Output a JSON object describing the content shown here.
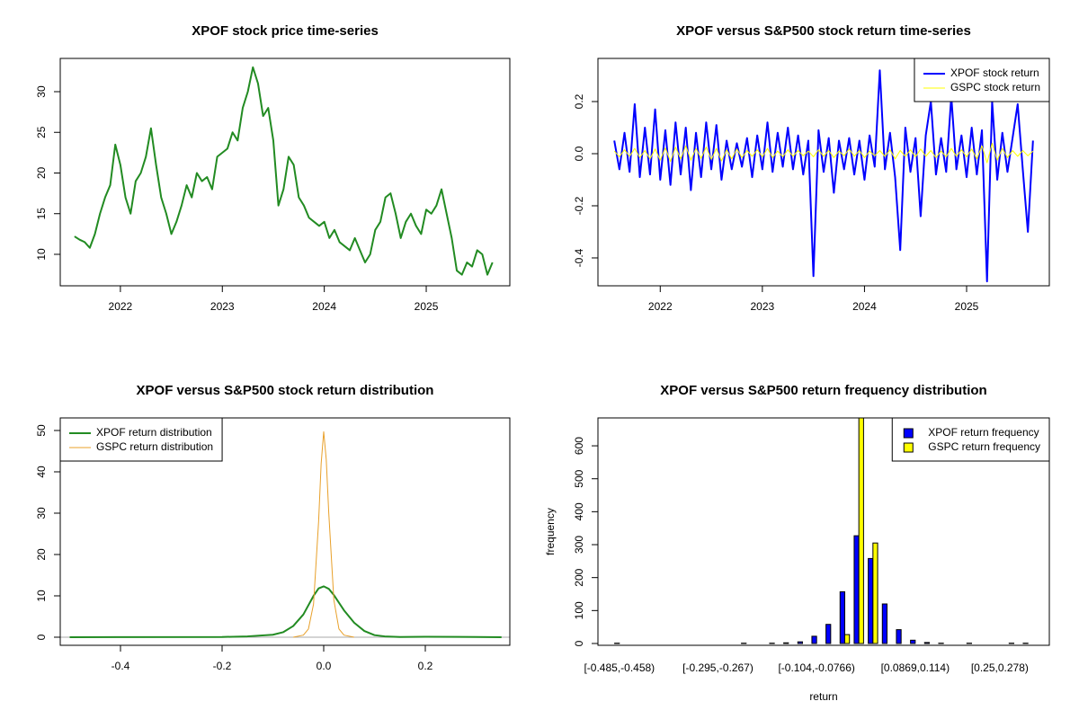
{
  "chart_data": [
    {
      "type": "line",
      "title": "XPOF stock price time-series",
      "x": [
        2021.55,
        2021.6,
        2021.65,
        2021.7,
        2021.75,
        2021.8,
        2021.85,
        2021.9,
        2021.95,
        2022,
        2022.05,
        2022.1,
        2022.15,
        2022.2,
        2022.25,
        2022.3,
        2022.35,
        2022.4,
        2022.45,
        2022.5,
        2022.55,
        2022.6,
        2022.65,
        2022.7,
        2022.75,
        2022.8,
        2022.85,
        2022.9,
        2022.95,
        2023,
        2023.05,
        2023.1,
        2023.15,
        2023.2,
        2023.25,
        2023.3,
        2023.35,
        2023.4,
        2023.45,
        2023.5,
        2023.55,
        2023.6,
        2023.65,
        2023.7,
        2023.75,
        2023.8,
        2023.85,
        2023.9,
        2023.95,
        2024,
        2024.05,
        2024.1,
        2024.15,
        2024.2,
        2024.25,
        2024.3,
        2024.35,
        2024.4,
        2024.45,
        2024.5,
        2024.55,
        2024.6,
        2024.65,
        2024.7,
        2024.75,
        2024.8,
        2024.85,
        2024.9,
        2024.95,
        2025,
        2025.05,
        2025.1,
        2025.15,
        2025.2,
        2025.25,
        2025.3,
        2025.35,
        2025.4,
        2025.45,
        2025.5,
        2025.55,
        2025.6,
        2025.65
      ],
      "values": [
        12.2,
        11.8,
        11.5,
        10.8,
        12.5,
        15,
        17,
        18.5,
        23.5,
        21,
        17,
        15,
        19,
        20,
        22,
        25.5,
        21,
        17,
        15,
        12.5,
        14,
        16,
        18.5,
        17,
        20,
        19,
        19.5,
        18,
        22,
        22.5,
        23,
        25,
        24,
        28,
        30,
        33,
        31,
        27,
        28,
        24,
        16,
        18,
        22,
        21,
        17,
        16,
        14.5,
        14,
        13.5,
        14,
        12,
        13,
        11.5,
        11,
        10.5,
        12,
        10.5,
        9,
        10,
        13,
        14,
        17,
        17.5,
        15,
        12,
        14,
        15,
        13.5,
        12.5,
        15.5,
        15,
        16,
        18,
        15,
        12,
        8,
        7.5,
        9,
        8.5,
        10.5,
        10,
        7.5,
        9
      ],
      "color": "#228b22",
      "xlim": [
        2021.41,
        2025.82
      ],
      "xticks": [
        2022,
        2023,
        2024,
        2025
      ],
      "ylim": [
        6.13,
        34.09
      ],
      "yticks": [
        10,
        15,
        20,
        25,
        30
      ]
    },
    {
      "type": "line",
      "title": "XPOF versus S&P500 stock return time-series",
      "x": [
        2021.55,
        2021.6,
        2021.65,
        2021.7,
        2021.75,
        2021.8,
        2021.85,
        2021.9,
        2021.95,
        2022,
        2022.05,
        2022.1,
        2022.15,
        2022.2,
        2022.25,
        2022.3,
        2022.35,
        2022.4,
        2022.45,
        2022.5,
        2022.55,
        2022.6,
        2022.65,
        2022.7,
        2022.75,
        2022.8,
        2022.85,
        2022.9,
        2022.95,
        2023,
        2023.05,
        2023.1,
        2023.15,
        2023.2,
        2023.25,
        2023.3,
        2023.35,
        2023.4,
        2023.45,
        2023.5,
        2023.55,
        2023.6,
        2023.65,
        2023.7,
        2023.75,
        2023.8,
        2023.85,
        2023.9,
        2023.95,
        2024,
        2024.05,
        2024.1,
        2024.15,
        2024.2,
        2024.25,
        2024.3,
        2024.35,
        2024.4,
        2024.45,
        2024.5,
        2024.55,
        2024.6,
        2024.65,
        2024.7,
        2024.75,
        2024.8,
        2024.85,
        2024.9,
        2024.95,
        2025,
        2025.05,
        2025.1,
        2025.15,
        2025.2,
        2025.25,
        2025.3,
        2025.35,
        2025.4,
        2025.45,
        2025.5,
        2025.55,
        2025.6,
        2025.65
      ],
      "series": [
        {
          "name": "XPOF stock return",
          "color": "#0000ff",
          "values": [
            0.05,
            -0.06,
            0.08,
            -0.07,
            0.19,
            -0.09,
            0.1,
            -0.08,
            0.17,
            -0.1,
            0.09,
            -0.12,
            0.12,
            -0.08,
            0.1,
            -0.14,
            0.08,
            -0.09,
            0.12,
            -0.06,
            0.11,
            -0.1,
            0.05,
            -0.06,
            0.04,
            -0.05,
            0.06,
            -0.09,
            0.07,
            -0.06,
            0.12,
            -0.07,
            0.08,
            -0.05,
            0.1,
            -0.06,
            0.07,
            -0.08,
            0.05,
            -0.47,
            0.09,
            -0.07,
            0.06,
            -0.15,
            0.05,
            -0.06,
            0.06,
            -0.08,
            0.05,
            -0.1,
            0.07,
            -0.05,
            0.32,
            -0.06,
            0.08,
            -0.09,
            -0.37,
            0.1,
            -0.07,
            0.06,
            -0.24,
            0.07,
            0.2,
            -0.08,
            0.06,
            -0.07,
            0.22,
            -0.06,
            0.07,
            -0.09,
            0.1,
            -0.08,
            0.09,
            -0.49,
            0.2,
            -0.1,
            0.08,
            -0.07,
            0.06,
            0.19,
            -0.06,
            -0.3,
            0.05
          ]
        },
        {
          "name": "GSPC stock return",
          "color": "#ffff00",
          "values": [
            0.01,
            -0.012,
            0.015,
            -0.01,
            0.02,
            -0.015,
            0.012,
            -0.02,
            0.018,
            -0.025,
            0.022,
            -0.03,
            0.025,
            -0.02,
            0.03,
            -0.025,
            0.02,
            -0.018,
            0.025,
            -0.022,
            0.02,
            -0.028,
            0.015,
            -0.02,
            0.018,
            -0.015,
            0.012,
            -0.01,
            0.015,
            -0.012,
            0.02,
            -0.015,
            0.01,
            -0.012,
            0.015,
            -0.01,
            0.012,
            -0.008,
            0.01,
            -0.012,
            0.015,
            -0.01,
            0.012,
            -0.015,
            0.01,
            -0.008,
            0.018,
            -0.01,
            0.012,
            -0.015,
            0.01,
            -0.008,
            0.012,
            -0.01,
            0.015,
            -0.02,
            0.012,
            -0.01,
            0.015,
            -0.012,
            0.018,
            -0.01,
            0.012,
            -0.015,
            0.01,
            -0.012,
            0.02,
            -0.01,
            0.015,
            -0.012,
            0.018,
            -0.02,
            0.03,
            -0.035,
            0.04,
            -0.025,
            0.02,
            -0.015,
            0.012,
            -0.01,
            0.012,
            -0.008,
            0.01
          ]
        }
      ],
      "xlim": [
        2021.39,
        2025.81
      ],
      "xticks": [
        2022,
        2023,
        2024,
        2025
      ],
      "ylim": [
        -0.507,
        0.3655
      ],
      "yticks": [
        -0.4,
        -0.2,
        {
          "value": 0,
          "label": "0.0"
        },
        0.2
      ],
      "legend": "topright"
    },
    {
      "type": "line",
      "title": "XPOF versus S&P500 stock return distribution",
      "series": [
        {
          "name": "XPOF return distribution",
          "color": "#228b22",
          "x": [
            -0.5,
            -0.2,
            -0.15,
            -0.1,
            -0.08,
            -0.06,
            -0.04,
            -0.02,
            -0.01,
            0,
            0.01,
            0.02,
            0.04,
            0.06,
            0.08,
            0.1,
            0.12,
            0.15,
            0.2,
            0.3,
            0.35
          ],
          "values": [
            0,
            0.05,
            0.2,
            0.6,
            1.2,
            2.7,
            5.5,
            10,
            11.8,
            12.3,
            11.7,
            10.2,
            6.5,
            3.5,
            1.5,
            0.5,
            0.2,
            0.05,
            0.1,
            0.05,
            0
          ]
        },
        {
          "name": "GSPC return distribution",
          "color": "#e8a02a",
          "x": [
            -0.06,
            -0.04,
            -0.03,
            -0.02,
            -0.01,
            -0.005,
            0,
            0.005,
            0.01,
            0.02,
            0.03,
            0.04,
            0.06
          ],
          "values": [
            0,
            0.5,
            2,
            8,
            28,
            42,
            49.7,
            43,
            30,
            9,
            2,
            0.5,
            0
          ]
        }
      ],
      "xlim": [
        -0.5186,
        0.3664
      ],
      "xticks": [
        -0.4,
        -0.2,
        {
          "value": 0,
          "label": "0.0"
        },
        0.2
      ],
      "ylim": [
        -1.96,
        53.04
      ],
      "yticks": [
        0,
        10,
        20,
        30,
        40,
        50
      ],
      "zero_line": true,
      "legend": "topleft"
    },
    {
      "type": "bar",
      "title": "XPOF versus S&P500 return frequency distribution",
      "categories": [
        "[-0.485,-0.458)",
        null,
        null,
        null,
        null,
        null,
        null,
        "[-0.295,-0.267)",
        null,
        null,
        null,
        null,
        null,
        null,
        "[-0.104,-0.0766)",
        null,
        null,
        null,
        null,
        null,
        null,
        "[0.0869,0.114)",
        null,
        null,
        null,
        null,
        null,
        "[0.25,0.278)",
        null,
        null
      ],
      "series": [
        {
          "name": "XPOF return frequency",
          "color": "#0000ff",
          "values": [
            1,
            0,
            0,
            0,
            0,
            0,
            0,
            0,
            0,
            1,
            0,
            1,
            2,
            5,
            22,
            58,
            157,
            327,
            258,
            120,
            42,
            10,
            3,
            1,
            0,
            1,
            0,
            0,
            1,
            1
          ]
        },
        {
          "name": "GSPC return frequency",
          "color": "#ffff00",
          "values": [
            0,
            0,
            0,
            0,
            0,
            0,
            0,
            0,
            0,
            0,
            0,
            0,
            0,
            0,
            0,
            0,
            27,
            700,
            305,
            0,
            0,
            0,
            0,
            0,
            0,
            0,
            0,
            0,
            0,
            0
          ]
        }
      ],
      "xlabel": "return",
      "ylabel": "frequency",
      "ylim": [
        -5.5,
        684.7
      ],
      "yticks": [
        0,
        100,
        200,
        300,
        400,
        500,
        600
      ],
      "legend": "topright"
    }
  ]
}
